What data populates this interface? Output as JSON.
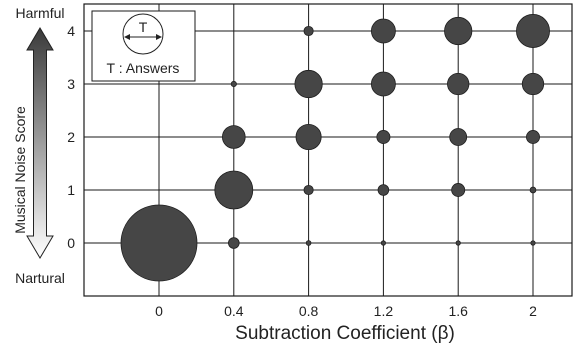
{
  "chart_data": {
    "type": "scatter",
    "subtype": "bubble",
    "xlabel": "Subtraction Coefficient (β)",
    "ylabel": "Musical Noise Score",
    "x_categories": [
      "0",
      "0.4",
      "0.8",
      "1.2",
      "1.6",
      "2"
    ],
    "y_ticks": [
      "0",
      "1",
      "2",
      "3",
      "4"
    ],
    "y_top_label": "Harmful",
    "y_bottom_label": "Nartural",
    "legend": {
      "symbol_text": "T",
      "text": "T : Answers",
      "position": "top-left"
    },
    "grid": true,
    "points": [
      {
        "x": "0",
        "y": 0,
        "answers": 100
      },
      {
        "x": "0.4",
        "y": 0,
        "answers": 2
      },
      {
        "x": "0.4",
        "y": 1,
        "answers": 25
      },
      {
        "x": "0.4",
        "y": 2,
        "answers": 9
      },
      {
        "x": "0.4",
        "y": 3,
        "answers": 0.5
      },
      {
        "x": "0.8",
        "y": 0,
        "answers": 0.4
      },
      {
        "x": "0.8",
        "y": 1,
        "answers": 1.5
      },
      {
        "x": "0.8",
        "y": 2,
        "answers": 11
      },
      {
        "x": "0.8",
        "y": 3,
        "answers": 13
      },
      {
        "x": "0.8",
        "y": 4,
        "answers": 1.5
      },
      {
        "x": "1.2",
        "y": 0,
        "answers": 0.2
      },
      {
        "x": "1.2",
        "y": 1,
        "answers": 2
      },
      {
        "x": "1.2",
        "y": 2,
        "answers": 3
      },
      {
        "x": "1.2",
        "y": 3,
        "answers": 10
      },
      {
        "x": "1.2",
        "y": 4,
        "answers": 10
      },
      {
        "x": "1.6",
        "y": 0,
        "answers": 0.15
      },
      {
        "x": "1.6",
        "y": 1,
        "answers": 3
      },
      {
        "x": "1.6",
        "y": 2,
        "answers": 5
      },
      {
        "x": "1.6",
        "y": 3,
        "answers": 8
      },
      {
        "x": "1.6",
        "y": 4,
        "answers": 13
      },
      {
        "x": "2",
        "y": 0,
        "answers": 0.3
      },
      {
        "x": "2",
        "y": 1,
        "answers": 0.6
      },
      {
        "x": "2",
        "y": 2,
        "answers": 3
      },
      {
        "x": "2",
        "y": 3,
        "answers": 8
      },
      {
        "x": "2",
        "y": 4,
        "answers": 19
      }
    ],
    "colors": {
      "bubble": "#464646",
      "bubble_stroke": "#1e1e1e",
      "grid": "#1a1a1a",
      "arrow_top": "#3a3a3a",
      "arrow_bottom": "#ffffff"
    }
  }
}
